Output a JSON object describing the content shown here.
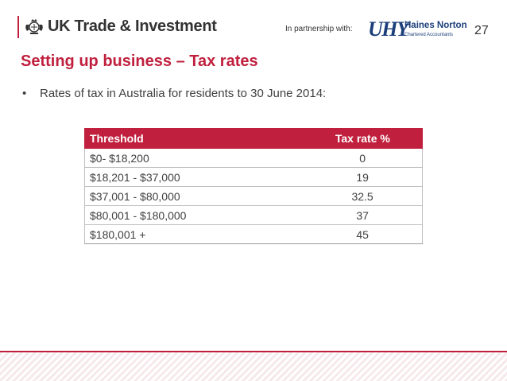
{
  "header": {
    "brand_name": "UK Trade & Investment",
    "crest_icon": "royal-crest-icon",
    "partner_label": "In partnership with:",
    "partner_logo": {
      "mark": "UHY",
      "name": "Haines Norton",
      "tagline": "Chartered Accountants"
    },
    "page_number": "27"
  },
  "slide": {
    "title": "Setting up business – Tax rates",
    "bullet": "Rates of tax in Australia for residents to 30 June 2014:"
  },
  "table": {
    "headers": [
      "Threshold",
      "Tax rate %"
    ],
    "rows": [
      [
        "$0- $18,200",
        "0"
      ],
      [
        "$18,201 - $37,000",
        "19"
      ],
      [
        "$37,001 - $80,000",
        "32.5"
      ],
      [
        "$80,001 - $180,000",
        "37"
      ],
      [
        "$180,001 +",
        "45"
      ]
    ]
  },
  "colors": {
    "accent": "#c0203e",
    "partner_blue": "#1c3f7a",
    "text": "#404040"
  }
}
